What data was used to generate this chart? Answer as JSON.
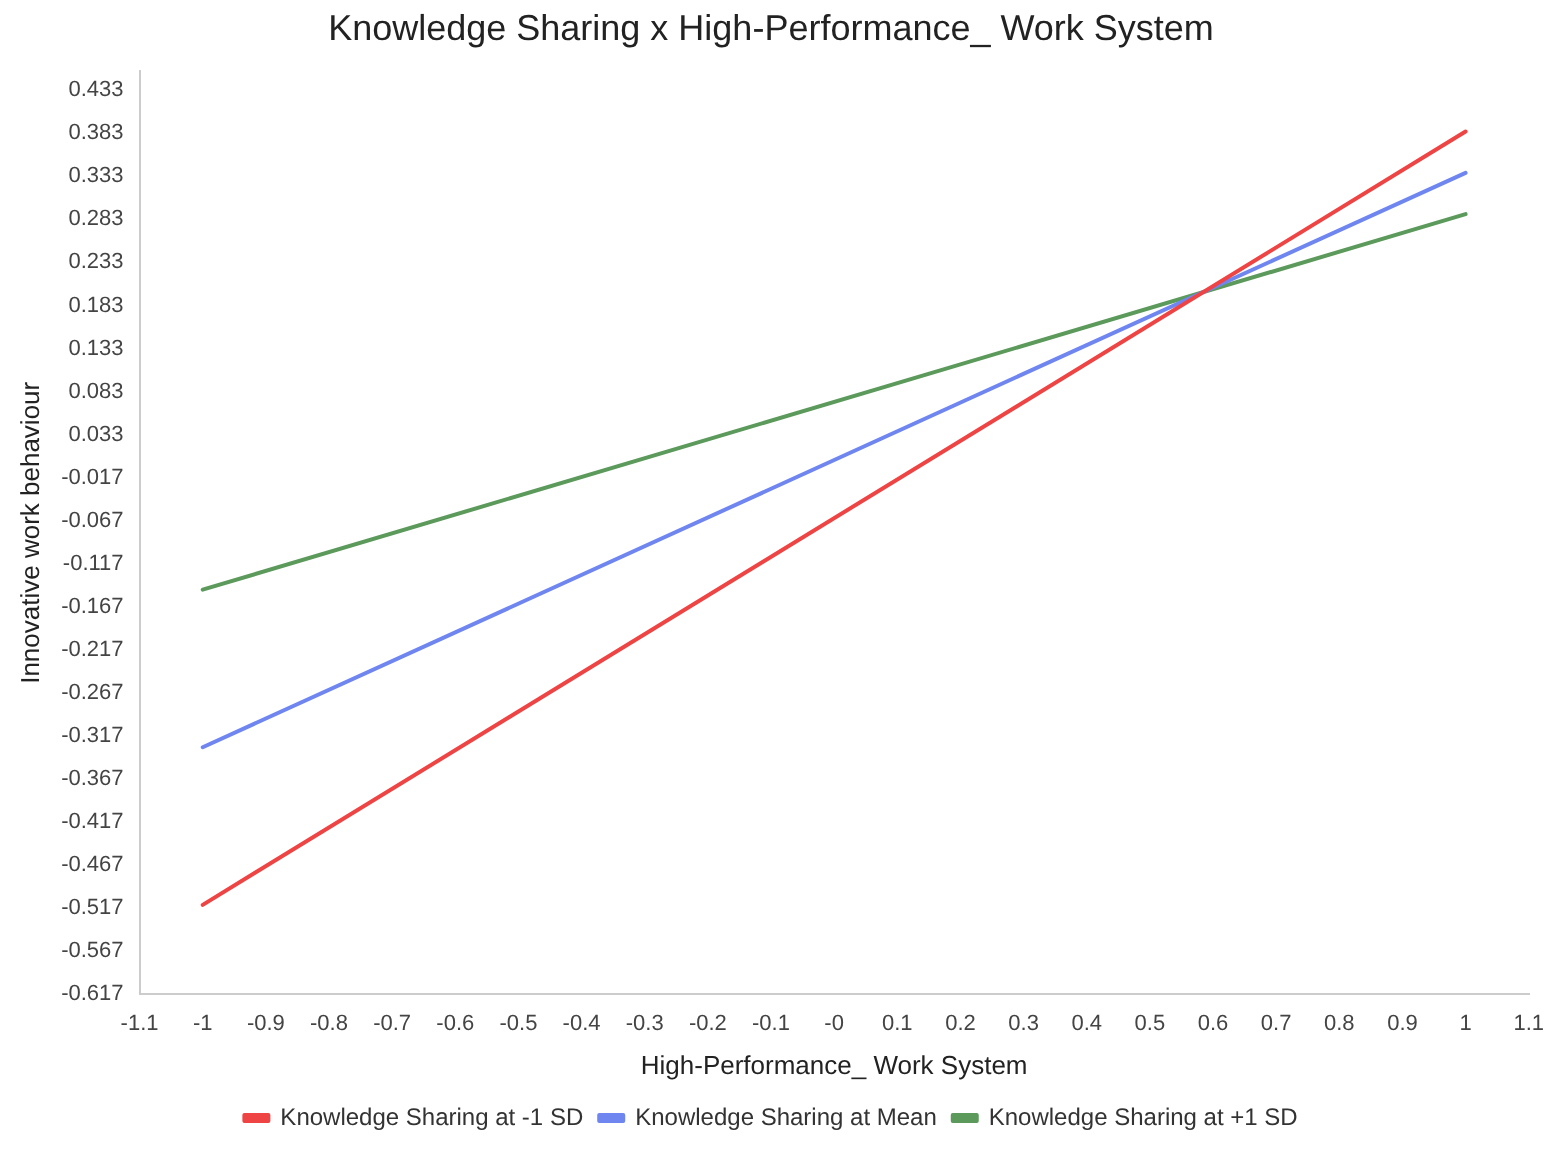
{
  "chart_data": {
    "type": "line",
    "title": "Knowledge Sharing x High-Performance_ Work System",
    "xlabel": "High-Performance_ Work System",
    "ylabel": "Innovative work behaviour",
    "x": [
      -1,
      1
    ],
    "series": [
      {
        "name": "Knowledge Sharing at -1 SD",
        "color": "#ee4444",
        "values": [
          -0.513,
          0.385
        ]
      },
      {
        "name": "Knowledge Sharing at Mean",
        "color": "#6f86f0",
        "values": [
          -0.33,
          0.337
        ]
      },
      {
        "name": "Knowledge Sharing at +1 SD",
        "color": "#5c9a5c",
        "values": [
          -0.147,
          0.289
        ]
      }
    ],
    "xlim": [
      -1.1,
      1.1
    ],
    "xticks": [
      -1.1,
      -1,
      -0.9,
      -0.8,
      -0.7,
      -0.6,
      -0.5,
      -0.4,
      -0.3,
      -0.2,
      -0.1,
      {
        "value": 0,
        "label": "-0"
      },
      0.1,
      0.2,
      0.3,
      0.4,
      0.5,
      0.6,
      0.7,
      0.8,
      0.9,
      1,
      1.1
    ],
    "ylim": [
      -0.617,
      0.455
    ],
    "yticks": [
      -0.617,
      -0.567,
      -0.517,
      -0.467,
      -0.417,
      -0.367,
      -0.317,
      -0.267,
      -0.217,
      -0.167,
      -0.117,
      -0.067,
      -0.017,
      0.033,
      0.083,
      0.133,
      0.183,
      0.233,
      0.283,
      0.333,
      0.383,
      0.433
    ],
    "grid": false,
    "legend": "bottom",
    "marker": "none",
    "line_style": "solid"
  }
}
